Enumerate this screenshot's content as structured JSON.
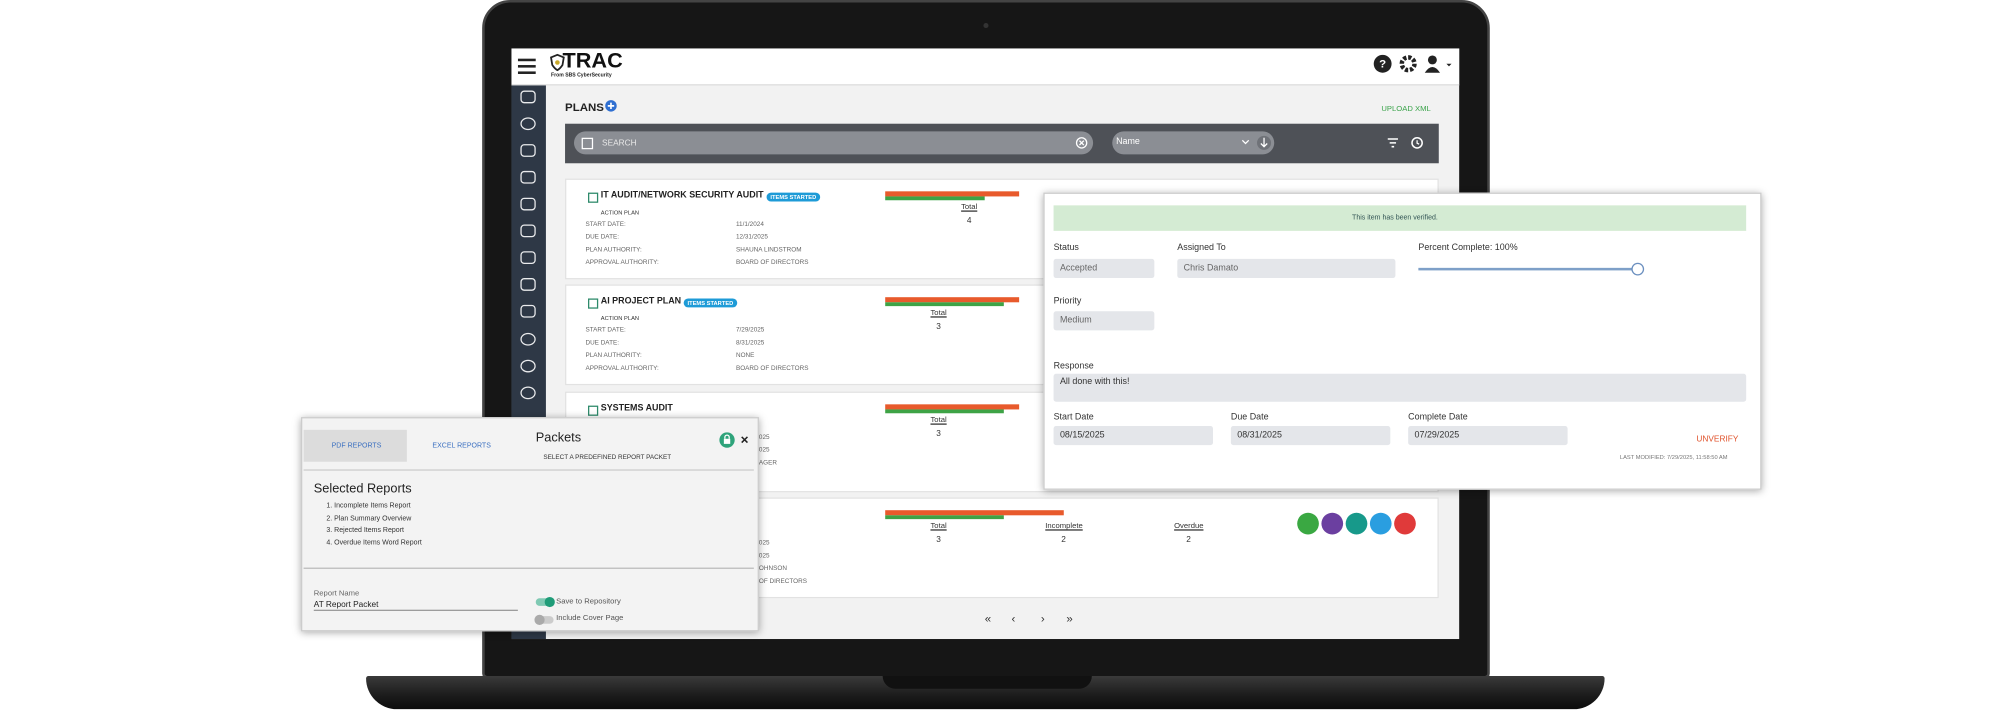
{
  "header": {
    "logo": "TRAC",
    "logo_sub": "From SBS CyberSecurity"
  },
  "page": {
    "title": "PLANS",
    "upload": "UPLOAD XML",
    "search_placeholder": "SEARCH",
    "sort": "Name"
  },
  "plans": [
    {
      "title": "IT AUDIT/NETWORK SECURITY AUDIT",
      "badge": "ITEMS STARTED",
      "subtitle": "ACTION PLAN",
      "fields": [
        {
          "label": "START DATE:",
          "value": "11/1/2024"
        },
        {
          "label": "DUE DATE:",
          "value": "12/31/2025"
        },
        {
          "label": "PLAN AUTHORITY:",
          "value": "SHAUNA LINDSTROM"
        },
        {
          "label": "APPROVAL AUTHORITY:",
          "value": "BOARD OF DIRECTORS"
        }
      ],
      "stats": [
        {
          "label": "Total",
          "value": 4
        }
      ]
    },
    {
      "title": "AI PROJECT PLAN",
      "badge": "ITEMS STARTED",
      "subtitle": "ACTION PLAN",
      "fields": [
        {
          "label": "START DATE:",
          "value": "7/29/2025"
        },
        {
          "label": "DUE DATE:",
          "value": "8/31/2025"
        },
        {
          "label": "PLAN AUTHORITY:",
          "value": "NONE"
        },
        {
          "label": "APPROVAL AUTHORITY:",
          "value": "BOARD OF DIRECTORS"
        }
      ],
      "stats": [
        {
          "label": "Total",
          "value": 3
        }
      ]
    },
    {
      "title": "SYSTEMS AUDIT",
      "fields": [
        {
          "value": "025"
        },
        {
          "value": "025"
        },
        {
          "value": "AGER"
        }
      ],
      "stats": [
        {
          "label": "Total",
          "value": 3
        }
      ]
    },
    {
      "fields": [
        {
          "value": "025"
        },
        {
          "value": "025"
        },
        {
          "value": "OHNSON"
        },
        {
          "value": "OF DIRECTORS"
        }
      ],
      "stats": [
        {
          "label": "Total",
          "value": 3
        },
        {
          "label": "Incomplete",
          "value": 2
        },
        {
          "label": "Overdue",
          "value": 2
        }
      ]
    }
  ],
  "pagination": [
    "«",
    "‹",
    "›",
    "»"
  ],
  "verify_panel": {
    "banner": "This item has been verified.",
    "status_label": "Status",
    "status": "Accepted",
    "assigned_label": "Assigned To",
    "assigned": "Chris Damato",
    "percent_label": "Percent Complete: 100%",
    "priority_label": "Priority",
    "priority": "Medium",
    "response_label": "Response",
    "response": "All done with this!",
    "start_label": "Start Date",
    "start": "08/15/2025",
    "due_label": "Due Date",
    "due": "08/31/2025",
    "complete_label": "Complete Date",
    "complete": "07/29/2025",
    "unverify": "UNVERIFY",
    "last_modified": "LAST MODIFIED: 7/29/2025, 11:58:50 AM"
  },
  "packets_panel": {
    "tab_pdf": "PDF REPORTS",
    "tab_excel": "EXCEL REPORTS",
    "title": "Packets",
    "select": "SELECT A PREDEFINED REPORT PACKET",
    "selected_title": "Selected Reports",
    "reports": [
      "Incomplete Items Report",
      "Plan Summary Overview",
      "Rejected Items Report",
      "Overdue Items Word Report"
    ],
    "report_name_label": "Report Name",
    "report_name": "AT Report Packet",
    "save": "Save to Repository",
    "cover": "Include Cover Page"
  }
}
